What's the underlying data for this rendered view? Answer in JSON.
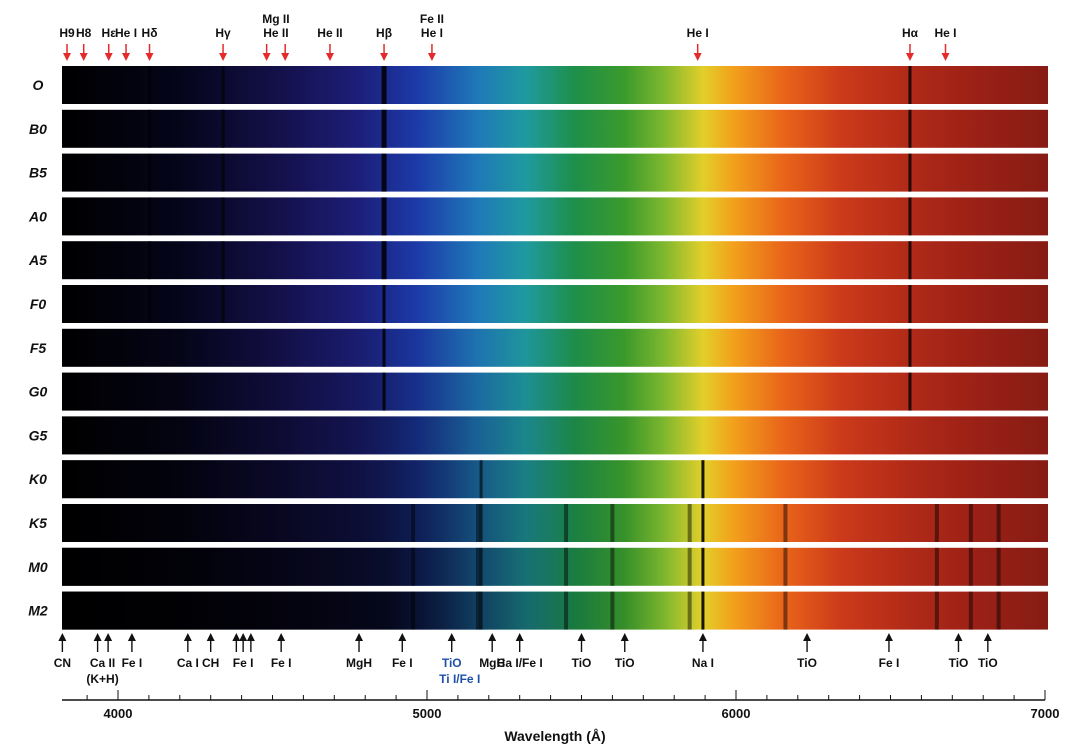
{
  "chart_data": {
    "type": "stellar-spectra",
    "spectral_types": [
      "O",
      "B0",
      "B5",
      "A0",
      "A5",
      "F0",
      "F5",
      "G0",
      "G5",
      "K0",
      "K5",
      "M0",
      "M2"
    ],
    "xlabel": "Wavelength (Å)",
    "xlim": [
      3800,
      7050
    ],
    "xticks": [
      4000,
      5000,
      6000,
      7000
    ],
    "top_lines": [
      {
        "text": "H9",
        "wl": 3835,
        "color": "#e32b2b"
      },
      {
        "text": "H8",
        "wl": 3889,
        "color": "#e32b2b"
      },
      {
        "text": "Hε",
        "wl": 3970,
        "color": "#e32b2b"
      },
      {
        "text": "He I",
        "wl": 4026,
        "color": "#e32b2b"
      },
      {
        "text": "Hδ",
        "wl": 4102,
        "color": "#e32b2b"
      },
      {
        "text": "Hγ",
        "wl": 4340,
        "color": "#e32b2b"
      },
      {
        "text": "Mg II",
        "line2": "He II",
        "wl": 4481,
        "wl2": 4541,
        "color": "#e32b2b"
      },
      {
        "text": "He II",
        "wl": 4686,
        "color": "#e32b2b"
      },
      {
        "text": "Hβ",
        "wl": 4861,
        "color": "#e32b2b"
      },
      {
        "text": "Fe II",
        "line2": "He I",
        "wl": 5016,
        "color": "#e32b2b"
      },
      {
        "text": "He I",
        "wl": 5876,
        "color": "#e32b2b"
      },
      {
        "text": "Hα",
        "wl": 6563,
        "color": "#e32b2b"
      },
      {
        "text": "He I",
        "wl": 6678,
        "color": "#e32b2b"
      }
    ],
    "bottom_lines": [
      {
        "text": "CN",
        "wl": 3820,
        "arrows": [
          3820
        ]
      },
      {
        "text": "Ca II",
        "line2": "(K+H)",
        "wl": 3950,
        "arrows": [
          3934,
          3968
        ]
      },
      {
        "text": "Fe I",
        "wl": 4045,
        "arrows": [
          4045
        ]
      },
      {
        "text": "Ca I",
        "wl": 4226,
        "arrows": [
          4226
        ]
      },
      {
        "text": "CH",
        "wl": 4300,
        "arrows": [
          4300
        ]
      },
      {
        "text": "Fe I",
        "wl": 4405,
        "arrows": [
          4383,
          4405,
          4430
        ]
      },
      {
        "text": "Fe I",
        "wl": 4528,
        "arrows": [
          4528
        ]
      },
      {
        "text": "MgH",
        "wl": 4780,
        "arrows": [
          4780
        ]
      },
      {
        "text": "Fe I",
        "wl": 4920,
        "arrows": [
          4920
        ]
      },
      {
        "text": "TiO",
        "line2": "Ti I/Fe I",
        "wl": 5080,
        "arrows": [
          5080
        ],
        "color": "#1f4fa8"
      },
      {
        "text": "MgH",
        "wl": 5211,
        "arrows": [
          5211
        ]
      },
      {
        "text": "Ca I/Fe I",
        "wl": 5300,
        "arrows": [
          5300
        ]
      },
      {
        "text": "TiO",
        "wl": 5500,
        "arrows": [
          5500
        ]
      },
      {
        "text": "TiO",
        "wl": 5640,
        "arrows": [
          5640
        ]
      },
      {
        "text": "Na I",
        "wl": 5893,
        "arrows": [
          5893
        ]
      },
      {
        "text": "TiO",
        "wl": 6230,
        "arrows": [
          6230
        ]
      },
      {
        "text": "Fe I",
        "wl": 6495,
        "arrows": [
          6495
        ]
      },
      {
        "text": "TiO",
        "wl": 6720,
        "arrows": [
          6720
        ]
      },
      {
        "text": "TiO",
        "wl": 6815,
        "arrows": [
          6815
        ]
      }
    ]
  }
}
